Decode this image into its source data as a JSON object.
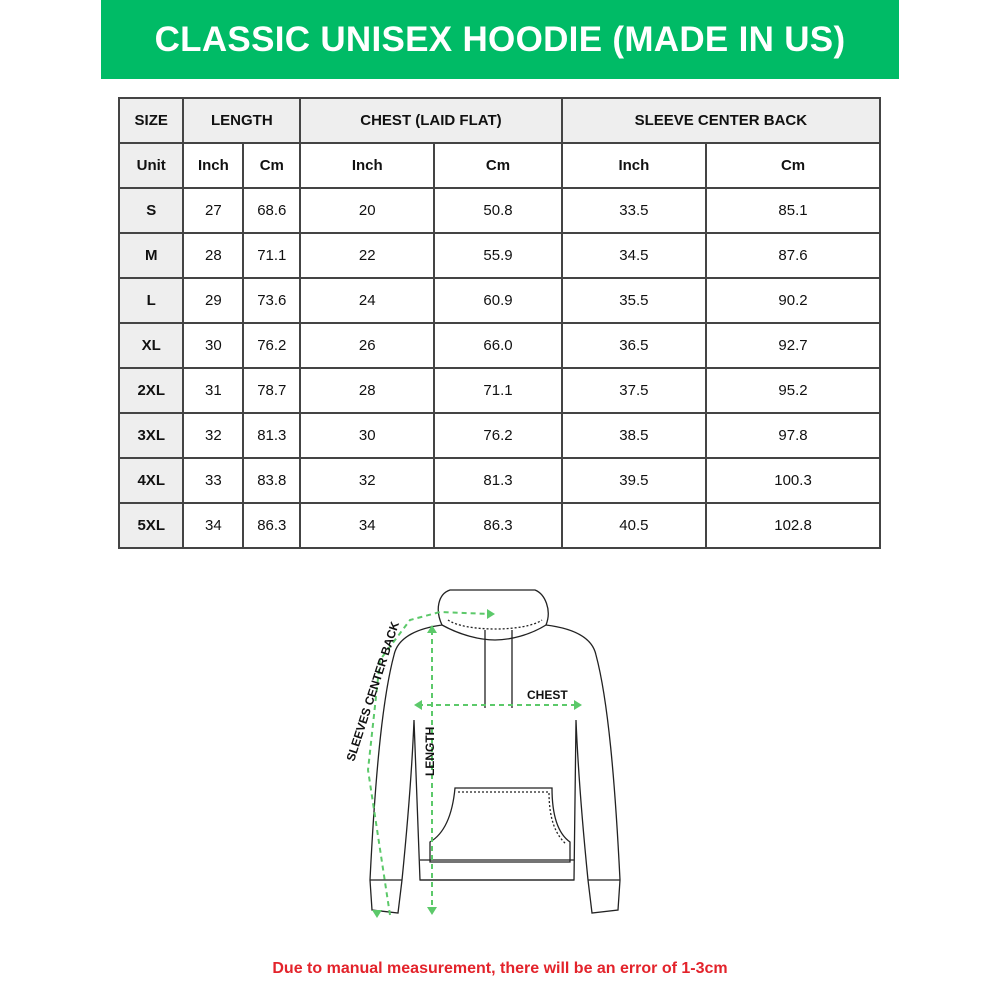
{
  "title": "CLASSIC UNISEX HOODIE (MADE IN US)",
  "colors": {
    "banner": "#00bb66",
    "note": "#e3232b",
    "arrows": "#5cc96a"
  },
  "table": {
    "headers": [
      "SIZE",
      "LENGTH",
      "CHEST (LAID FLAT)",
      "SLEEVE CENTER BACK"
    ],
    "unit_row": [
      "Unit",
      "Inch",
      "Cm",
      "Inch",
      "Cm",
      "Inch",
      "Cm"
    ],
    "rows": [
      [
        "S",
        "27",
        "68.6",
        "20",
        "50.8",
        "33.5",
        "85.1"
      ],
      [
        "M",
        "28",
        "71.1",
        "22",
        "55.9",
        "34.5",
        "87.6"
      ],
      [
        "L",
        "29",
        "73.6",
        "24",
        "60.9",
        "35.5",
        "90.2"
      ],
      [
        "XL",
        "30",
        "76.2",
        "26",
        "66.0",
        "36.5",
        "92.7"
      ],
      [
        "2XL",
        "31",
        "78.7",
        "28",
        "71.1",
        "37.5",
        "95.2"
      ],
      [
        "3XL",
        "32",
        "81.3",
        "30",
        "76.2",
        "38.5",
        "97.8"
      ],
      [
        "4XL",
        "33",
        "83.8",
        "32",
        "81.3",
        "39.5",
        "100.3"
      ],
      [
        "5XL",
        "34",
        "86.3",
        "34",
        "86.3",
        "40.5",
        "102.8"
      ]
    ]
  },
  "diagram": {
    "chest": "CHEST",
    "length": "LENGTH",
    "sleeve": "SLEEVES CENTER BACK"
  },
  "note": "Due to manual measurement, there will be an error of 1-3cm"
}
